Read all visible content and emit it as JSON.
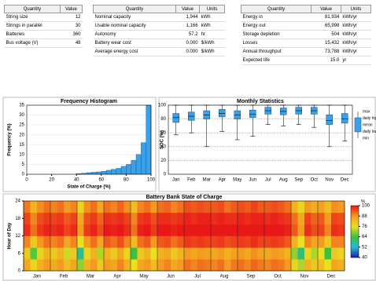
{
  "tables": [
    {
      "headers": [
        "Quantity",
        "Value"
      ],
      "rows": [
        [
          "String size",
          "12"
        ],
        [
          "Strings in parallel",
          "30"
        ],
        [
          "Batteries",
          "360"
        ],
        [
          "Bus voltage (V)",
          "48"
        ]
      ]
    },
    {
      "headers": [
        "Quantity",
        "Value",
        "Units"
      ],
      "rows": [
        [
          "Nominal capacity",
          "1,944",
          "kWh"
        ],
        [
          "Usable nominal capacity",
          "1,166",
          "kWh"
        ],
        [
          "Autonomy",
          "57.2",
          "hr"
        ],
        [
          "Battery wear cost",
          "0.000",
          "$/kWh"
        ],
        [
          "Average energy cost",
          "0.000",
          "$/kWh"
        ]
      ]
    },
    {
      "headers": [
        "Quantity",
        "Value",
        "Units"
      ],
      "rows": [
        [
          "Energy in",
          "81,934",
          "kWh/yr"
        ],
        [
          "Energy out",
          "65,998",
          "kWh/yr"
        ],
        [
          "Storage depletion",
          "504",
          "kWh/yr"
        ],
        [
          "Losses",
          "15,432",
          "kWh/yr"
        ],
        [
          "Annual throughput",
          "73,788",
          "kWh/yr"
        ],
        [
          "Expected life",
          "15.0",
          "yr"
        ]
      ]
    }
  ],
  "chart_data": [
    {
      "type": "histogram",
      "title": "Frequency Histogram",
      "x_label": "State of Charge (%)",
      "y_label": "Frequency (%)",
      "bins": [
        40,
        44,
        48,
        52,
        56,
        60,
        64,
        68,
        72,
        76,
        80,
        84,
        88,
        92,
        96,
        100
      ],
      "values": [
        0.3,
        0.5,
        0.8,
        1,
        1.2,
        1.5,
        2,
        2.5,
        3,
        4,
        5,
        7,
        10,
        16,
        35
      ],
      "color": "#3aa0e8",
      "xlim": [
        0,
        100
      ],
      "xticks": [
        0,
        20,
        40,
        60,
        80,
        100
      ],
      "ylim": [
        0,
        35
      ],
      "yticks": [
        0,
        5,
        10,
        15,
        20,
        25,
        30,
        35
      ],
      "grid": true
    },
    {
      "type": "box",
      "title": "Monthly Statistics",
      "y_label": "SOC (%)",
      "categories": [
        "Jan",
        "Feb",
        "Mar",
        "Apr",
        "May",
        "Jun",
        "Jul",
        "Aug",
        "Sep",
        "Oct",
        "Nov",
        "Dec"
      ],
      "series": [
        {
          "name": "max",
          "values": [
            100,
            100,
            100,
            100,
            100,
            100,
            100,
            100,
            100,
            100,
            100,
            100
          ]
        },
        {
          "name": "daily high",
          "values": [
            88,
            90,
            92,
            94,
            92,
            93,
            97,
            96,
            97,
            97,
            86,
            88
          ]
        },
        {
          "name": "mean",
          "values": [
            82,
            84,
            86,
            88,
            86,
            87,
            92,
            91,
            92,
            92,
            78,
            80
          ]
        },
        {
          "name": "daily low",
          "values": [
            75,
            78,
            80,
            83,
            80,
            82,
            87,
            86,
            87,
            87,
            72,
            74
          ]
        },
        {
          "name": "min",
          "values": [
            57,
            60,
            40,
            62,
            50,
            55,
            72,
            70,
            72,
            68,
            40,
            48
          ]
        }
      ],
      "color": "#3aa0e8",
      "ylim": [
        0,
        100
      ],
      "yticks": [
        0,
        20,
        40,
        60,
        80,
        100
      ],
      "grid": true
    },
    {
      "type": "heatmap",
      "title": "Battery Bank State of Charge",
      "y_label": "Hour of Day",
      "categories": [
        "Jan",
        "Feb",
        "Mar",
        "Apr",
        "May",
        "Jun",
        "Jul",
        "Aug",
        "Sep",
        "Oct",
        "Nov",
        "Dec"
      ],
      "y_bins": [
        0,
        4,
        8,
        12,
        16,
        20,
        24
      ],
      "values": [
        [
          86,
          78,
          84,
          88,
          85,
          88,
          82,
          86,
          70,
          84,
          88,
          80,
          88,
          86,
          90,
          84,
          76,
          86,
          88,
          82,
          88,
          90,
          86,
          88,
          92,
          90,
          92,
          91,
          90,
          92,
          88,
          91,
          92,
          90,
          93,
          91,
          90,
          92,
          91,
          88,
          78,
          72,
          84,
          80,
          82,
          76,
          86,
          84
        ],
        [
          80,
          66,
          78,
          84,
          80,
          84,
          74,
          80,
          58,
          78,
          84,
          72,
          84,
          80,
          86,
          78,
          64,
          80,
          84,
          76,
          84,
          86,
          80,
          84,
          88,
          86,
          88,
          87,
          86,
          88,
          84,
          87,
          88,
          86,
          89,
          87,
          86,
          88,
          87,
          84,
          70,
          60,
          78,
          72,
          76,
          64,
          80,
          78
        ],
        [
          90,
          80,
          88,
          92,
          90,
          92,
          86,
          90,
          76,
          88,
          92,
          86,
          94,
          92,
          95,
          90,
          82,
          92,
          94,
          88,
          94,
          95,
          92,
          94,
          97,
          96,
          97,
          96,
          96,
          97,
          95,
          96,
          97,
          96,
          98,
          96,
          96,
          97,
          96,
          94,
          84,
          76,
          90,
          86,
          88,
          80,
          90,
          90
        ],
        [
          98,
          92,
          97,
          99,
          98,
          99,
          96,
          98,
          88,
          97,
          99,
          95,
          100,
          99,
          100,
          98,
          92,
          99,
          100,
          97,
          100,
          100,
          99,
          100,
          100,
          100,
          100,
          100,
          100,
          100,
          100,
          100,
          100,
          100,
          100,
          100,
          100,
          100,
          100,
          99,
          94,
          88,
          98,
          95,
          96,
          90,
          98,
          97
        ],
        [
          96,
          90,
          95,
          97,
          96,
          97,
          94,
          96,
          86,
          95,
          97,
          93,
          98,
          97,
          98,
          96,
          90,
          97,
          98,
          95,
          98,
          98,
          97,
          98,
          99,
          98,
          99,
          99,
          98,
          99,
          98,
          98,
          99,
          98,
          99,
          99,
          98,
          99,
          98,
          97,
          92,
          86,
          96,
          93,
          94,
          88,
          96,
          95
        ],
        [
          91,
          84,
          89,
          92,
          90,
          92,
          88,
          90,
          78,
          89,
          92,
          86,
          92,
          90,
          93,
          89,
          82,
          90,
          92,
          88,
          92,
          93,
          90,
          92,
          95,
          94,
          95,
          94,
          94,
          95,
          92,
          94,
          95,
          94,
          96,
          94,
          94,
          95,
          94,
          92,
          84,
          78,
          88,
          85,
          87,
          82,
          89,
          88
        ]
      ],
      "ylim": [
        0,
        24
      ],
      "yticks": [
        0,
        6,
        12,
        18,
        24
      ],
      "clim": [
        40,
        100
      ],
      "cticks": [
        40,
        52,
        64,
        76,
        88,
        100
      ],
      "colors": [
        "#1c1ca8",
        "#25b8d8",
        "#3cc040",
        "#e8e020",
        "#f59a20",
        "#e81818"
      ],
      "colorbar_label": "%"
    }
  ]
}
